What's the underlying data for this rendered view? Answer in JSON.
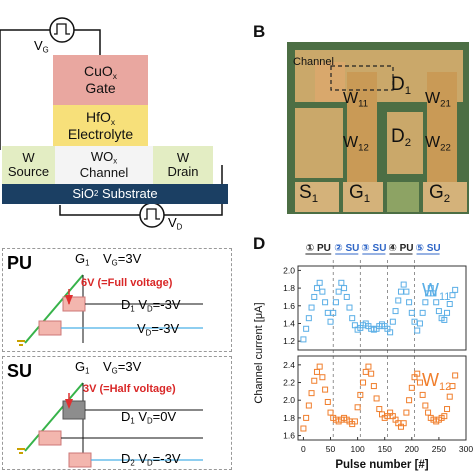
{
  "panel_a": {
    "vg_label": "V",
    "vg_sub": "G",
    "vd_label": "V",
    "vd_sub": "D",
    "gate": {
      "line1": "CuO",
      "sub": "x",
      "line2": "Gate"
    },
    "electrolyte": {
      "line1": "HfO",
      "sub": "x",
      "line2": "Electrolyte"
    },
    "source": {
      "line1": "W",
      "line2": "Source"
    },
    "channel": {
      "line1": "WO",
      "sub": "x",
      "line2": "Channel"
    },
    "drain": {
      "line1": "W",
      "line2": "Drain"
    },
    "substrate": {
      "label": "SiO",
      "sub": "2",
      "rest": " Substrate"
    },
    "colors": {
      "gate": "#e9a7a0",
      "electrolyte": "#f7e07a",
      "electrode": "#e3edc3",
      "channel": "#f4f4f4",
      "substrate": "#1b3f63"
    }
  },
  "panel_b": {
    "letter": "B",
    "channel_label": "Channel",
    "labels": [
      {
        "text": "D",
        "sub": "1"
      },
      {
        "text": "W",
        "sub": "11"
      },
      {
        "text": "W",
        "sub": "21"
      },
      {
        "text": "W",
        "sub": "12"
      },
      {
        "text": "D",
        "sub": "2"
      },
      {
        "text": "W",
        "sub": "22"
      },
      {
        "text": "S",
        "sub": "1"
      },
      {
        "text": "G",
        "sub": "1"
      },
      {
        "text": "G",
        "sub": "2"
      }
    ]
  },
  "panel_c": {
    "pu": {
      "mode": "PU",
      "gate": {
        "text": "G",
        "sub": "1"
      },
      "vg": "V",
      "vg_sub": "G",
      "vg_val": "=3V",
      "note": "6V (=Full voltage)",
      "d1": {
        "text": "D",
        "sub": "1"
      },
      "vd1": "V",
      "vd1_sub": "D",
      "vd1_val": "=-3V",
      "vd2": "V",
      "vd2_sub": "D",
      "vd2_val": "=-3V"
    },
    "su": {
      "mode": "SU",
      "gate": {
        "text": "G",
        "sub": "1"
      },
      "vg": "V",
      "vg_sub": "G",
      "vg_val": "=3V",
      "note": "3V (=Half voltage)",
      "d1": {
        "text": "D",
        "sub": "1"
      },
      "vd1": "V",
      "vd1_sub": "D",
      "vd1_val": "=0V",
      "d2": {
        "text": "D",
        "sub": "2"
      },
      "vd2": "V",
      "vd2_sub": "D",
      "vd2_val": "=-3V"
    }
  },
  "panel_d": {
    "letter": "D",
    "phases": [
      {
        "num": "①",
        "label": "PU",
        "color": "#222222"
      },
      {
        "num": "②",
        "label": "SU",
        "color": "#2f66c7"
      },
      {
        "num": "③",
        "label": "SU",
        "color": "#2f66c7"
      },
      {
        "num": "④",
        "label": "PU",
        "color": "#222222"
      },
      {
        "num": "⑤",
        "label": "SU",
        "color": "#2f66c7"
      }
    ]
  },
  "chart_data": {
    "type": "scatter",
    "xlabel": "Pulse number [#]",
    "ylabel": "Channel current [μA]",
    "xlim": [
      -10,
      300
    ],
    "x_ticks": [
      0,
      50,
      100,
      150,
      200,
      250,
      300
    ],
    "series": [
      {
        "name": "W11",
        "color": "#5aaee6",
        "ylim": [
          1.1,
          2.05
        ],
        "y_ticks": [
          1.2,
          1.4,
          1.6,
          1.8,
          2.0
        ],
        "x": [
          0,
          5,
          10,
          15,
          20,
          25,
          30,
          35,
          40,
          45,
          50,
          55,
          60,
          65,
          70,
          75,
          80,
          85,
          90,
          95,
          100,
          105,
          110,
          115,
          120,
          125,
          130,
          135,
          140,
          145,
          150,
          155,
          160,
          165,
          170,
          175,
          180,
          185,
          190,
          195,
          200,
          205,
          210,
          215,
          220,
          225,
          230,
          235,
          240,
          245,
          250,
          255,
          260,
          265,
          270,
          275,
          280
        ],
        "y": [
          1.22,
          1.34,
          1.46,
          1.58,
          1.7,
          1.8,
          1.86,
          1.76,
          1.64,
          1.52,
          1.42,
          1.52,
          1.64,
          1.76,
          1.86,
          1.8,
          1.7,
          1.58,
          1.46,
          1.38,
          1.33,
          1.35,
          1.38,
          1.4,
          1.37,
          1.34,
          1.33,
          1.34,
          1.37,
          1.39,
          1.37,
          1.34,
          1.3,
          1.42,
          1.54,
          1.66,
          1.76,
          1.84,
          1.76,
          1.64,
          1.52,
          1.42,
          1.32,
          1.4,
          1.52,
          1.64,
          1.74,
          1.8,
          1.74,
          1.64,
          1.54,
          1.46,
          1.44,
          1.52,
          1.62,
          1.72,
          1.78
        ]
      },
      {
        "name": "W12",
        "color": "#f07e2c",
        "ylim": [
          1.55,
          2.5
        ],
        "y_ticks": [
          1.6,
          1.8,
          2.0,
          2.2,
          2.4
        ],
        "x": [
          0,
          5,
          10,
          15,
          20,
          25,
          30,
          35,
          40,
          45,
          50,
          55,
          60,
          65,
          70,
          75,
          80,
          85,
          90,
          95,
          100,
          105,
          110,
          115,
          120,
          125,
          130,
          135,
          140,
          145,
          150,
          155,
          160,
          165,
          170,
          175,
          180,
          185,
          190,
          195,
          200,
          205,
          210,
          215,
          220,
          225,
          230,
          235,
          240,
          245,
          250,
          255,
          260,
          265,
          270,
          275,
          280
        ],
        "y": [
          1.68,
          1.8,
          1.94,
          2.08,
          2.22,
          2.32,
          2.38,
          2.26,
          2.12,
          1.98,
          1.86,
          1.8,
          1.78,
          1.76,
          1.78,
          1.8,
          1.78,
          1.76,
          1.73,
          1.76,
          1.92,
          2.06,
          2.2,
          2.32,
          2.38,
          2.3,
          2.16,
          2.02,
          1.9,
          1.84,
          1.8,
          1.82,
          1.86,
          1.82,
          1.78,
          1.74,
          1.7,
          1.74,
          1.86,
          2.0,
          2.14,
          2.26,
          2.3,
          2.2,
          2.06,
          1.94,
          1.86,
          1.8,
          1.78,
          1.76,
          1.78,
          1.8,
          1.82,
          1.9,
          2.04,
          2.16,
          2.28
        ]
      }
    ]
  }
}
